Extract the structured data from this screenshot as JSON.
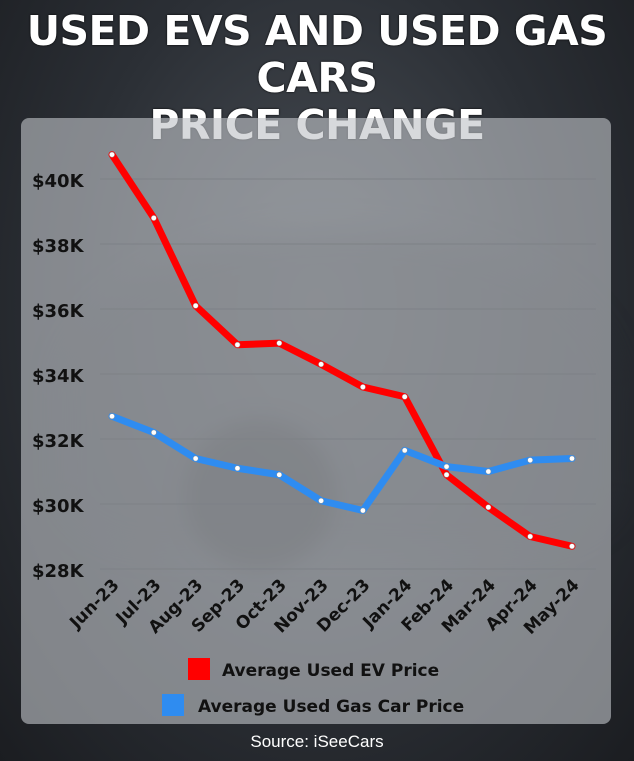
{
  "title_line1": "USED EVS AND USED GAS CARS",
  "title_line2": "PRICE CHANGE",
  "source": "Source: iSeeCars",
  "colors": {
    "ev": "#ff0000",
    "gas": "#2f8cf0",
    "panel": "#bec1c6"
  },
  "chart_data": {
    "type": "line",
    "categories": [
      "Jun-23",
      "Jul-23",
      "Aug-23",
      "Sep-23",
      "Oct-23",
      "Nov-23",
      "Dec-23",
      "Jan-24",
      "Feb-24",
      "Mar-24",
      "Apr-24",
      "May-24"
    ],
    "y_ticks": [
      "$40K",
      "$38K",
      "$36K",
      "$34K",
      "$32K",
      "$30K",
      "$28K"
    ],
    "y_tick_values": [
      40000,
      38000,
      36000,
      34000,
      32000,
      30000,
      28000
    ],
    "ylim": [
      28000,
      40500
    ],
    "grid": true,
    "legend_position": "bottom",
    "series": [
      {
        "name": "Average Used EV Price",
        "color": "#ff0000",
        "values": [
          40750,
          38800,
          36100,
          34900,
          34950,
          34300,
          33600,
          33300,
          30900,
          29900,
          29000,
          28700
        ]
      },
      {
        "name": "Average Used Gas Car Price",
        "color": "#2f8cf0",
        "values": [
          32700,
          32200,
          31400,
          31100,
          30900,
          30100,
          29800,
          31650,
          31150,
          31000,
          31350,
          31400
        ]
      }
    ]
  }
}
